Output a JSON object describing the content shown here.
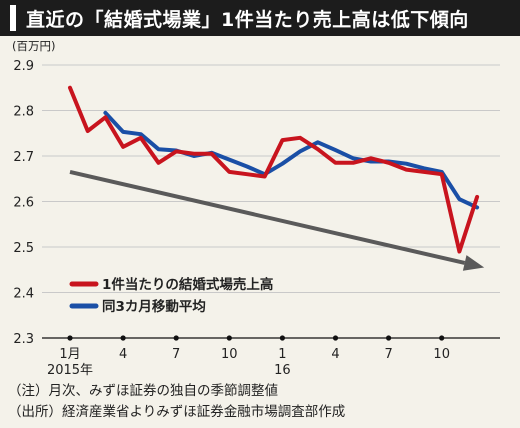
{
  "title": "直近の「結婚式場業」1件当たり売上高は低下傾向",
  "notes": [
    "（注）月次、みずほ証券の独自の季節調整値",
    "（出所）経済産業省よりみずほ証券金融市場調査部作成"
  ],
  "colors": {
    "series1": "#c8141e",
    "series2": "#1a4fa6",
    "trend": "#5a5a5a",
    "grid": "#c9c9c9",
    "background": "#f4f2ea"
  },
  "chart_data": {
    "type": "line",
    "unit_label": "(百万円)",
    "ylim": [
      2.3,
      2.9
    ],
    "yticks": [
      "2.3",
      "2.4",
      "2.5",
      "2.6",
      "2.7",
      "2.8",
      "2.9"
    ],
    "xticks": [
      {
        "index": 0,
        "label": "1月",
        "sublabel": "2015年"
      },
      {
        "index": 3,
        "label": "4",
        "sublabel": ""
      },
      {
        "index": 6,
        "label": "7",
        "sublabel": ""
      },
      {
        "index": 9,
        "label": "10",
        "sublabel": ""
      },
      {
        "index": 12,
        "label": "1",
        "sublabel": "16"
      },
      {
        "index": 15,
        "label": "4",
        "sublabel": ""
      },
      {
        "index": 18,
        "label": "7",
        "sublabel": ""
      },
      {
        "index": 21,
        "label": "10",
        "sublabel": ""
      }
    ],
    "x": [
      "2015-01",
      "2015-02",
      "2015-03",
      "2015-04",
      "2015-05",
      "2015-06",
      "2015-07",
      "2015-08",
      "2015-09",
      "2015-10",
      "2015-11",
      "2015-12",
      "2016-01",
      "2016-02",
      "2016-03",
      "2016-04",
      "2016-05",
      "2016-06",
      "2016-07",
      "2016-08",
      "2016-09",
      "2016-10",
      "2016-11",
      "2016-12"
    ],
    "series": [
      {
        "name": "1件当たりの結婚式場売上高",
        "values": [
          2.85,
          2.755,
          2.785,
          2.72,
          2.74,
          2.685,
          2.71,
          2.705,
          2.705,
          2.665,
          2.66,
          2.655,
          2.735,
          2.74,
          2.715,
          2.685,
          2.685,
          2.695,
          2.685,
          2.67,
          2.665,
          2.66,
          2.49,
          2.61
        ]
      },
      {
        "name": "同3カ月移動平均",
        "values": [
          null,
          null,
          2.795,
          2.753,
          2.748,
          2.715,
          2.712,
          2.7,
          2.707,
          2.692,
          2.677,
          2.66,
          2.683,
          2.71,
          2.73,
          2.713,
          2.695,
          2.688,
          2.688,
          2.683,
          2.673,
          2.665,
          2.605,
          2.587
        ]
      }
    ],
    "trend_arrow": {
      "from": {
        "index": 0,
        "y": 2.665
      },
      "to": {
        "index": 23.4,
        "y": 2.455
      }
    }
  }
}
